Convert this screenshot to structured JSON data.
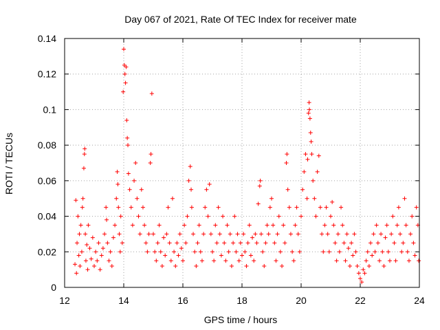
{
  "chart_data": {
    "type": "scatter",
    "title": "Day 067 of 2021, Rate Of TEC Index for receiver mate",
    "xlabel": "GPS time / hours",
    "ylabel": "ROTI / TECUs",
    "xlim": [
      12,
      24
    ],
    "ylim": [
      0,
      0.14
    ],
    "xticks": [
      12,
      14,
      16,
      18,
      20,
      22,
      24
    ],
    "xtick_labels": [
      "12",
      "14",
      "16",
      "18",
      "20",
      "22",
      "24"
    ],
    "yticks": [
      0,
      0.02,
      0.04,
      0.06,
      0.08,
      0.1,
      0.12,
      0.14
    ],
    "ytick_labels": [
      "0",
      "0.02",
      "0.04",
      "0.06",
      "0.08",
      "0.1",
      "0.12",
      "0.14"
    ],
    "grid": true,
    "marker": "+",
    "series": [
      {
        "name": "ROTI",
        "color": "#ff0000",
        "points": [
          [
            12.35,
            0.013
          ],
          [
            12.38,
            0.049
          ],
          [
            12.4,
            0.008
          ],
          [
            12.42,
            0.025
          ],
          [
            12.45,
            0.04
          ],
          [
            12.48,
            0.018
          ],
          [
            12.5,
            0.03
          ],
          [
            12.52,
            0.012
          ],
          [
            12.55,
            0.035
          ],
          [
            12.58,
            0.02
          ],
          [
            12.6,
            0.045
          ],
          [
            12.62,
            0.05
          ],
          [
            12.65,
            0.067
          ],
          [
            12.67,
            0.075
          ],
          [
            12.68,
            0.078
          ],
          [
            12.7,
            0.03
          ],
          [
            12.72,
            0.015
          ],
          [
            12.75,
            0.024
          ],
          [
            12.78,
            0.01
          ],
          [
            12.8,
            0.035
          ],
          [
            12.85,
            0.022
          ],
          [
            12.9,
            0.016
          ],
          [
            12.95,
            0.028
          ],
          [
            13.0,
            0.012
          ],
          [
            13.05,
            0.02
          ],
          [
            13.1,
            0.015
          ],
          [
            13.15,
            0.025
          ],
          [
            13.2,
            0.01
          ],
          [
            13.25,
            0.018
          ],
          [
            13.3,
            0.022
          ],
          [
            13.35,
            0.03
          ],
          [
            13.4,
            0.045
          ],
          [
            13.42,
            0.038
          ],
          [
            13.45,
            0.025
          ],
          [
            13.5,
            0.015
          ],
          [
            13.55,
            0.02
          ],
          [
            13.6,
            0.012
          ],
          [
            13.65,
            0.028
          ],
          [
            13.7,
            0.035
          ],
          [
            13.75,
            0.05
          ],
          [
            13.78,
            0.065
          ],
          [
            13.8,
            0.058
          ],
          [
            13.82,
            0.045
          ],
          [
            13.85,
            0.03
          ],
          [
            13.88,
            0.02
          ],
          [
            13.9,
            0.04
          ],
          [
            13.95,
            0.025
          ],
          [
            13.98,
            0.11
          ],
          [
            14.0,
            0.134
          ],
          [
            14.02,
            0.125
          ],
          [
            14.04,
            0.12
          ],
          [
            14.06,
            0.115
          ],
          [
            14.08,
            0.124
          ],
          [
            14.1,
            0.094
          ],
          [
            14.12,
            0.084
          ],
          [
            14.14,
            0.08
          ],
          [
            14.16,
            0.064
          ],
          [
            14.2,
            0.055
          ],
          [
            14.25,
            0.045
          ],
          [
            14.3,
            0.035
          ],
          [
            14.35,
            0.06
          ],
          [
            14.4,
            0.07
          ],
          [
            14.45,
            0.05
          ],
          [
            14.5,
            0.04
          ],
          [
            14.55,
            0.03
          ],
          [
            14.6,
            0.055
          ],
          [
            14.65,
            0.045
          ],
          [
            14.7,
            0.035
          ],
          [
            14.75,
            0.025
          ],
          [
            14.8,
            0.02
          ],
          [
            14.85,
            0.03
          ],
          [
            14.9,
            0.07
          ],
          [
            14.92,
            0.075
          ],
          [
            14.95,
            0.109
          ],
          [
            15.0,
            0.03
          ],
          [
            15.05,
            0.02
          ],
          [
            15.1,
            0.015
          ],
          [
            15.15,
            0.025
          ],
          [
            15.2,
            0.035
          ],
          [
            15.25,
            0.02
          ],
          [
            15.3,
            0.012
          ],
          [
            15.35,
            0.028
          ],
          [
            15.4,
            0.018
          ],
          [
            15.45,
            0.03
          ],
          [
            15.5,
            0.045
          ],
          [
            15.55,
            0.025
          ],
          [
            15.6,
            0.015
          ],
          [
            15.65,
            0.05
          ],
          [
            15.7,
            0.02
          ],
          [
            15.75,
            0.012
          ],
          [
            15.8,
            0.025
          ],
          [
            15.85,
            0.018
          ],
          [
            15.9,
            0.03
          ],
          [
            15.95,
            0.022
          ],
          [
            16.0,
            0.015
          ],
          [
            16.05,
            0.035
          ],
          [
            16.1,
            0.025
          ],
          [
            16.15,
            0.04
          ],
          [
            16.2,
            0.06
          ],
          [
            16.25,
            0.068
          ],
          [
            16.28,
            0.055
          ],
          [
            16.3,
            0.045
          ],
          [
            16.35,
            0.03
          ],
          [
            16.4,
            0.02
          ],
          [
            16.45,
            0.012
          ],
          [
            16.5,
            0.025
          ],
          [
            16.55,
            0.035
          ],
          [
            16.6,
            0.02
          ],
          [
            16.65,
            0.015
          ],
          [
            16.7,
            0.03
          ],
          [
            16.75,
            0.045
          ],
          [
            16.8,
            0.055
          ],
          [
            16.85,
            0.04
          ],
          [
            16.9,
            0.058
          ],
          [
            16.95,
            0.03
          ],
          [
            17.0,
            0.02
          ],
          [
            17.05,
            0.015
          ],
          [
            17.1,
            0.035
          ],
          [
            17.15,
            0.025
          ],
          [
            17.2,
            0.045
          ],
          [
            17.25,
            0.03
          ],
          [
            17.3,
            0.018
          ],
          [
            17.35,
            0.04
          ],
          [
            17.4,
            0.025
          ],
          [
            17.45,
            0.015
          ],
          [
            17.5,
            0.035
          ],
          [
            17.55,
            0.02
          ],
          [
            17.6,
            0.03
          ],
          [
            17.65,
            0.012
          ],
          [
            17.7,
            0.025
          ],
          [
            17.75,
            0.04
          ],
          [
            17.8,
            0.02
          ],
          [
            17.85,
            0.03
          ],
          [
            17.9,
            0.015
          ],
          [
            17.95,
            0.025
          ],
          [
            18.0,
            0.018
          ],
          [
            18.05,
            0.03
          ],
          [
            18.1,
            0.02
          ],
          [
            18.15,
            0.012
          ],
          [
            18.2,
            0.025
          ],
          [
            18.25,
            0.035
          ],
          [
            18.3,
            0.018
          ],
          [
            18.35,
            0.028
          ],
          [
            18.4,
            0.015
          ],
          [
            18.45,
            0.03
          ],
          [
            18.5,
            0.025
          ],
          [
            18.55,
            0.047
          ],
          [
            18.6,
            0.057
          ],
          [
            18.62,
            0.06
          ],
          [
            18.65,
            0.03
          ],
          [
            18.7,
            0.02
          ],
          [
            18.75,
            0.012
          ],
          [
            18.8,
            0.025
          ],
          [
            18.85,
            0.035
          ],
          [
            18.9,
            0.03
          ],
          [
            18.95,
            0.045
          ],
          [
            19.0,
            0.05
          ],
          [
            19.05,
            0.035
          ],
          [
            19.1,
            0.025
          ],
          [
            19.15,
            0.015
          ],
          [
            19.2,
            0.03
          ],
          [
            19.25,
            0.04
          ],
          [
            19.3,
            0.02
          ],
          [
            19.35,
            0.012
          ],
          [
            19.4,
            0.035
          ],
          [
            19.45,
            0.025
          ],
          [
            19.5,
            0.07
          ],
          [
            19.52,
            0.075
          ],
          [
            19.55,
            0.055
          ],
          [
            19.6,
            0.045
          ],
          [
            19.65,
            0.03
          ],
          [
            19.7,
            0.02
          ],
          [
            19.75,
            0.015
          ],
          [
            19.8,
            0.035
          ],
          [
            19.85,
            0.045
          ],
          [
            19.9,
            0.03
          ],
          [
            19.95,
            0.02
          ],
          [
            20.0,
            0.04
          ],
          [
            20.05,
            0.055
          ],
          [
            20.1,
            0.065
          ],
          [
            20.15,
            0.075
          ],
          [
            20.2,
            0.05
          ],
          [
            20.22,
            0.072
          ],
          [
            20.25,
            0.098
          ],
          [
            20.27,
            0.104
          ],
          [
            20.28,
            0.1
          ],
          [
            20.3,
            0.095
          ],
          [
            20.32,
            0.087
          ],
          [
            20.34,
            0.082
          ],
          [
            20.36,
            0.075
          ],
          [
            20.4,
            0.06
          ],
          [
            20.45,
            0.05
          ],
          [
            20.5,
            0.04
          ],
          [
            20.55,
            0.065
          ],
          [
            20.6,
            0.074
          ],
          [
            20.65,
            0.045
          ],
          [
            20.7,
            0.03
          ],
          [
            20.75,
            0.02
          ],
          [
            20.8,
            0.035
          ],
          [
            20.85,
            0.045
          ],
          [
            20.9,
            0.03
          ],
          [
            20.95,
            0.02
          ],
          [
            21.0,
            0.04
          ],
          [
            21.05,
            0.048
          ],
          [
            21.1,
            0.035
          ],
          [
            21.15,
            0.025
          ],
          [
            21.2,
            0.015
          ],
          [
            21.25,
            0.03
          ],
          [
            21.3,
            0.02
          ],
          [
            21.35,
            0.045
          ],
          [
            21.4,
            0.035
          ],
          [
            21.45,
            0.025
          ],
          [
            21.5,
            0.015
          ],
          [
            21.55,
            0.03
          ],
          [
            21.6,
            0.022
          ],
          [
            21.65,
            0.012
          ],
          [
            21.7,
            0.025
          ],
          [
            21.75,
            0.018
          ],
          [
            21.8,
            0.03
          ],
          [
            21.85,
            0.02
          ],
          [
            21.9,
            0.012
          ],
          [
            21.95,
            0.008
          ],
          [
            22.0,
            0.005
          ],
          [
            22.05,
            0.003
          ],
          [
            22.1,
            0.01
          ],
          [
            22.15,
            0.008
          ],
          [
            22.2,
            0.015
          ],
          [
            22.25,
            0.02
          ],
          [
            22.3,
            0.012
          ],
          [
            22.35,
            0.025
          ],
          [
            22.4,
            0.018
          ],
          [
            22.45,
            0.03
          ],
          [
            22.5,
            0.02
          ],
          [
            22.55,
            0.035
          ],
          [
            22.6,
            0.025
          ],
          [
            22.65,
            0.015
          ],
          [
            22.7,
            0.03
          ],
          [
            22.75,
            0.02
          ],
          [
            22.8,
            0.012
          ],
          [
            22.85,
            0.028
          ],
          [
            22.9,
            0.035
          ],
          [
            22.95,
            0.02
          ],
          [
            23.0,
            0.015
          ],
          [
            23.05,
            0.03
          ],
          [
            23.1,
            0.04
          ],
          [
            23.15,
            0.025
          ],
          [
            23.2,
            0.015
          ],
          [
            23.25,
            0.035
          ],
          [
            23.3,
            0.045
          ],
          [
            23.35,
            0.03
          ],
          [
            23.4,
            0.02
          ],
          [
            23.45,
            0.025
          ],
          [
            23.5,
            0.05
          ],
          [
            23.55,
            0.035
          ],
          [
            23.6,
            0.02
          ],
          [
            23.65,
            0.015
          ],
          [
            23.7,
            0.03
          ],
          [
            23.75,
            0.04
          ],
          [
            23.8,
            0.025
          ],
          [
            23.85,
            0.018
          ],
          [
            23.9,
            0.045
          ],
          [
            23.95,
            0.035
          ],
          [
            23.98,
            0.015
          ]
        ]
      }
    ]
  }
}
